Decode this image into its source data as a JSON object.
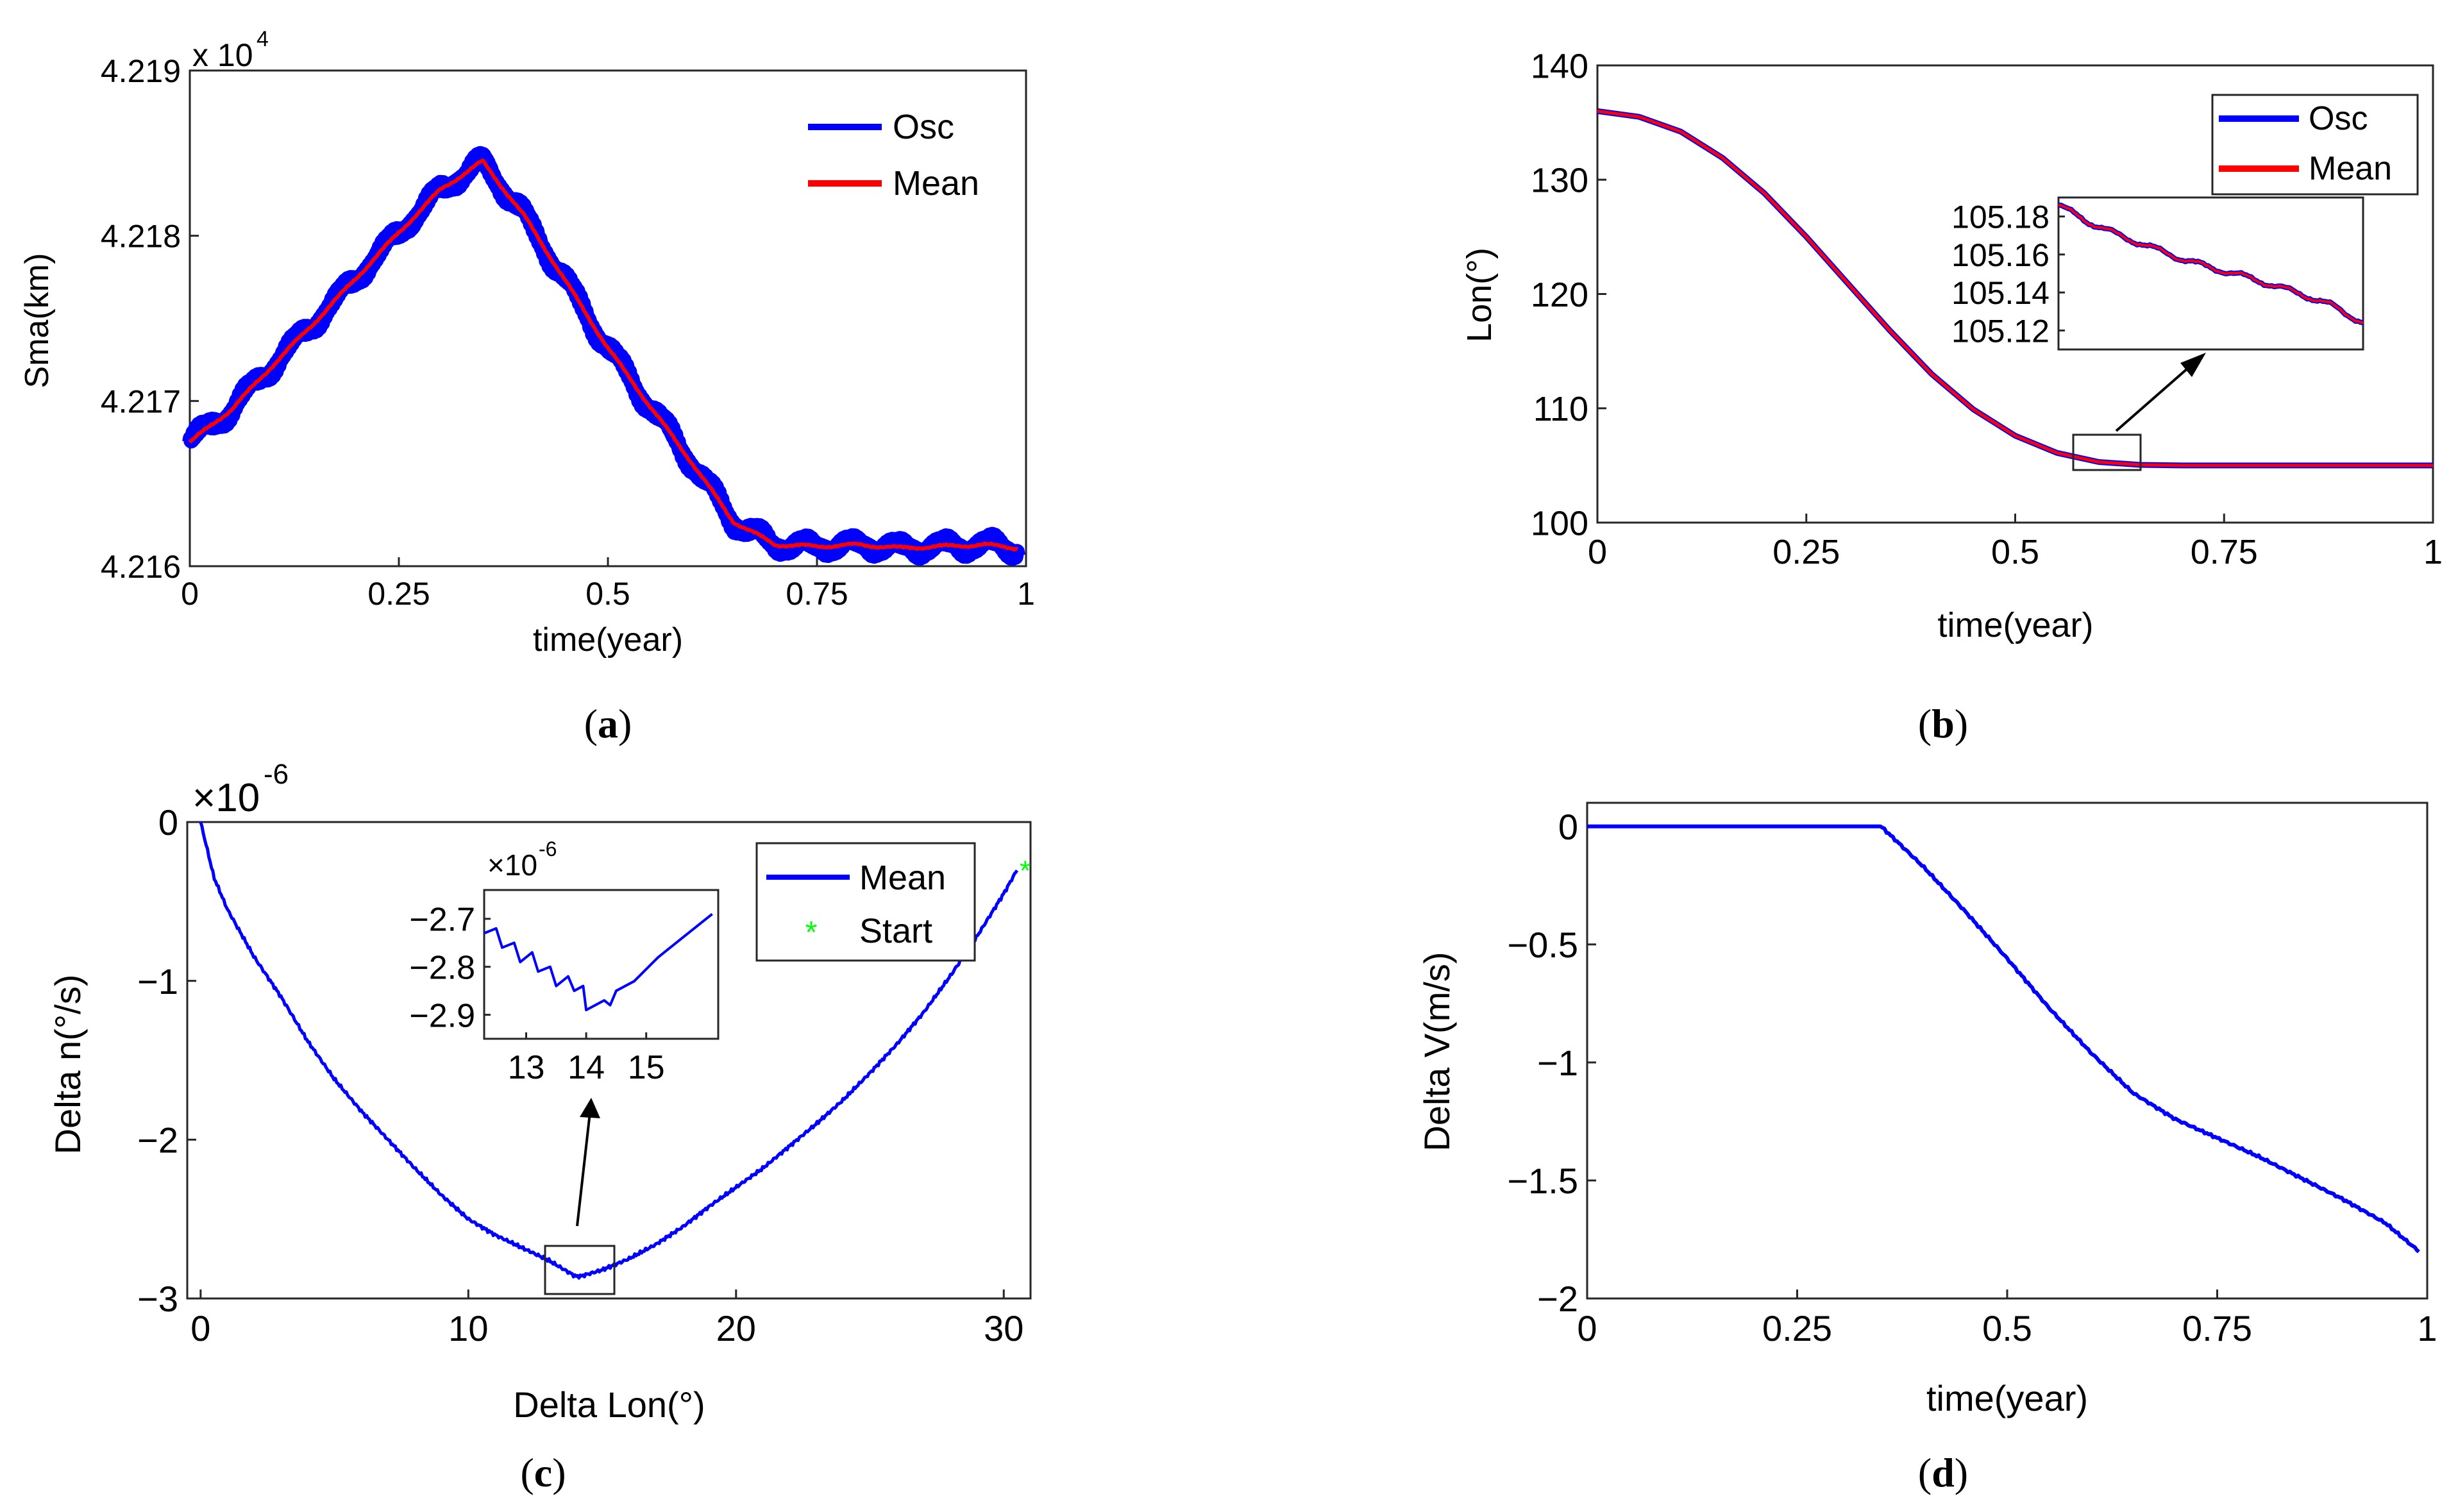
{
  "figure": {
    "panels": [
      {
        "caption_open": "(",
        "caption_letter": "a",
        "caption_close": ")"
      },
      {
        "caption_open": "(",
        "caption_letter": "b",
        "caption_close": ")"
      },
      {
        "caption_open": "(",
        "caption_letter": "c",
        "caption_close": ")"
      },
      {
        "caption_open": "(",
        "caption_letter": "d",
        "caption_close": ")"
      }
    ]
  },
  "colors": {
    "osc": "#0000ff",
    "mean": "#ff0000",
    "mean_blue": "#0000ff",
    "start_marker": "#00ff00",
    "axis": "#262626"
  },
  "chart_data": [
    {
      "id": "a",
      "type": "line",
      "xlabel": "time(year)",
      "ylabel": "Sma(km)",
      "exponent_base": "x 10",
      "exponent_power": "4",
      "xlim": [
        0,
        1
      ],
      "ylim": [
        4.216,
        4.219
      ],
      "xticks": [
        0,
        0.25,
        0.5,
        0.75,
        1
      ],
      "xtick_labels": [
        "0",
        "0.25",
        "0.5",
        "0.75",
        "1"
      ],
      "yticks": [
        4.216,
        4.217,
        4.218,
        4.219
      ],
      "ytick_labels": [
        "4.216",
        "4.217",
        "4.218",
        "4.219"
      ],
      "legend": [
        "Osc",
        "Mean"
      ],
      "legend_position": "top-right",
      "series": [
        {
          "name": "Osc",
          "note": "oscillating band around mean, half-width ~0.00008",
          "x": [
            0,
            0.05,
            0.1,
            0.15,
            0.2,
            0.25,
            0.3,
            0.35,
            0.4,
            0.45,
            0.5,
            0.55,
            0.6,
            0.65,
            0.7,
            0.75,
            0.8,
            0.85,
            0.9,
            0.95,
            0.99
          ],
          "y": [
            4.21675,
            4.21695,
            4.21722,
            4.21748,
            4.21775,
            4.21802,
            4.21828,
            4.21845,
            4.21812,
            4.21772,
            4.21732,
            4.21697,
            4.21663,
            4.21627,
            4.21613,
            4.21612,
            4.21613,
            4.21611,
            4.21612,
            4.21613,
            4.21611
          ]
        },
        {
          "name": "Mean",
          "x": [
            0,
            0.05,
            0.1,
            0.15,
            0.2,
            0.25,
            0.3,
            0.35,
            0.4,
            0.45,
            0.5,
            0.55,
            0.6,
            0.65,
            0.7,
            0.75,
            0.8,
            0.85,
            0.9,
            0.95,
            0.99
          ],
          "y": [
            4.21675,
            4.21695,
            4.21722,
            4.21748,
            4.21775,
            4.21802,
            4.21828,
            4.21845,
            4.21812,
            4.21772,
            4.21732,
            4.21697,
            4.21663,
            4.21627,
            4.21613,
            4.21612,
            4.21613,
            4.21611,
            4.21612,
            4.21613,
            4.21611
          ]
        }
      ]
    },
    {
      "id": "b",
      "type": "line",
      "xlabel": "time(year)",
      "ylabel": "Lon(°)",
      "xlim": [
        0,
        1
      ],
      "ylim": [
        100,
        140
      ],
      "xticks": [
        0,
        0.25,
        0.5,
        0.75,
        1
      ],
      "xtick_labels": [
        "0",
        "0.25",
        "0.5",
        "0.75",
        "1"
      ],
      "yticks": [
        100,
        110,
        120,
        130,
        140
      ],
      "ytick_labels": [
        "100",
        "110",
        "120",
        "130",
        "140"
      ],
      "legend": [
        "Osc",
        "Mean"
      ],
      "legend_position": "top-right",
      "series": [
        {
          "name": "Osc",
          "x": [
            0,
            0.05,
            0.1,
            0.15,
            0.2,
            0.25,
            0.3,
            0.35,
            0.4,
            0.45,
            0.5,
            0.55,
            0.6,
            0.65,
            0.7,
            0.8,
            0.9,
            1.0
          ],
          "y": [
            136,
            135.5,
            134.2,
            131.9,
            128.8,
            125.0,
            120.9,
            116.8,
            113.0,
            109.9,
            107.6,
            106.1,
            105.3,
            105.05,
            105.0,
            105.0,
            105.0,
            105.0
          ]
        },
        {
          "name": "Mean",
          "x": [
            0,
            0.05,
            0.1,
            0.15,
            0.2,
            0.25,
            0.3,
            0.35,
            0.4,
            0.45,
            0.5,
            0.55,
            0.6,
            0.65,
            0.7,
            0.8,
            0.9,
            1.0
          ],
          "y": [
            136,
            135.5,
            134.2,
            131.9,
            128.8,
            125.0,
            120.9,
            116.8,
            113.0,
            109.9,
            107.6,
            106.1,
            105.3,
            105.05,
            105.0,
            105.0,
            105.0,
            105.0
          ]
        }
      ],
      "zoom_box": {
        "x": [
          0.57,
          0.65
        ],
        "y": [
          105,
          108
        ]
      },
      "inset": {
        "xlim": [
          0,
          1
        ],
        "ylim": [
          105.11,
          105.19
        ],
        "yticks": [
          105.12,
          105.14,
          105.16,
          105.18
        ],
        "ytick_labels": [
          "105.12",
          "105.14",
          "105.16",
          "105.18"
        ],
        "series_x": [
          0,
          0.1,
          0.2,
          0.3,
          0.4,
          0.5,
          0.6,
          0.7,
          0.8,
          0.9,
          1.0
        ],
        "series_y": [
          105.186,
          105.177,
          105.17,
          105.164,
          105.158,
          105.153,
          105.149,
          105.144,
          105.139,
          105.133,
          105.124
        ]
      }
    },
    {
      "id": "c",
      "type": "line",
      "xlabel": "Delta Lon(°)",
      "ylabel": "Delta n(°/s)",
      "exponent_base": "×10",
      "exponent_power": "-6",
      "xlim": [
        -0.5,
        31
      ],
      "ylim": [
        -3,
        0
      ],
      "xticks": [
        0,
        10,
        20,
        30
      ],
      "xtick_labels": [
        "0",
        "10",
        "20",
        "30"
      ],
      "yticks": [
        0,
        -1,
        -2,
        -3
      ],
      "ytick_labels": [
        "0",
        "−1",
        "−2",
        "−3"
      ],
      "legend": [
        "Mean",
        "Start"
      ],
      "legend_position": "top-right",
      "series": [
        {
          "name": "Mean",
          "x": [
            0,
            0.5,
            1,
            2,
            3,
            4,
            5,
            6,
            7,
            8,
            9,
            10,
            11,
            12,
            13,
            14,
            14.2,
            15,
            16,
            17,
            18,
            19,
            20,
            21,
            22,
            23,
            24,
            25,
            26,
            27,
            28,
            29,
            30,
            30.5
          ],
          "y": [
            0,
            -0.35,
            -0.55,
            -0.85,
            -1.1,
            -1.38,
            -1.62,
            -1.82,
            -2.0,
            -2.18,
            -2.35,
            -2.5,
            -2.6,
            -2.68,
            -2.76,
            -2.86,
            -2.86,
            -2.82,
            -2.75,
            -2.66,
            -2.55,
            -2.42,
            -2.3,
            -2.18,
            -2.04,
            -1.9,
            -1.75,
            -1.58,
            -1.4,
            -1.2,
            -0.97,
            -0.72,
            -0.45,
            -0.3
          ]
        },
        {
          "name": "Start",
          "x": [
            30.8
          ],
          "y": [
            -0.3
          ]
        }
      ],
      "zoom_box": {
        "x": [
          13.2,
          15.8
        ],
        "y": [
          -2.95,
          -2.72
        ]
      },
      "inset": {
        "exponent_base": "×10",
        "exponent_power": "-6",
        "xlim": [
          12.3,
          16.2
        ],
        "ylim": [
          -2.95,
          -2.64
        ],
        "xticks": [
          13,
          14,
          15
        ],
        "xtick_labels": [
          "13",
          "14",
          "15"
        ],
        "yticks": [
          -2.7,
          -2.8,
          -2.9
        ],
        "ytick_labels": [
          "−2.7",
          "−2.8",
          "−2.9"
        ],
        "series_x": [
          12.3,
          12.5,
          12.6,
          12.8,
          12.9,
          13.1,
          13.2,
          13.4,
          13.5,
          13.7,
          13.8,
          13.95,
          14.0,
          14.3,
          14.4,
          14.5,
          14.8,
          15.2,
          15.6,
          16.1
        ],
        "series_y": [
          -2.73,
          -2.72,
          -2.76,
          -2.75,
          -2.79,
          -2.77,
          -2.81,
          -2.8,
          -2.84,
          -2.82,
          -2.85,
          -2.84,
          -2.89,
          -2.87,
          -2.88,
          -2.85,
          -2.83,
          -2.78,
          -2.74,
          -2.69
        ]
      }
    },
    {
      "id": "d",
      "type": "line",
      "xlabel": "time(year)",
      "ylabel": "Delta V(m/s)",
      "xlim": [
        0,
        1
      ],
      "ylim": [
        -2,
        0.1
      ],
      "xticks": [
        0,
        0.25,
        0.5,
        0.75,
        1
      ],
      "xtick_labels": [
        "0",
        "0.25",
        "0.5",
        "0.75",
        "1"
      ],
      "yticks": [
        0,
        -0.5,
        -1,
        -1.5,
        -2
      ],
      "ytick_labels": [
        "0",
        "−0.5",
        "−1",
        "−1.5",
        "−2"
      ],
      "series": [
        {
          "name": "Delta V",
          "x": [
            0,
            0.1,
            0.2,
            0.3,
            0.35,
            0.4,
            0.45,
            0.5,
            0.55,
            0.6,
            0.65,
            0.7,
            0.75,
            0.8,
            0.85,
            0.9,
            0.95,
            0.99
          ],
          "y": [
            0,
            0,
            0,
            0,
            0,
            -0.17,
            -0.36,
            -0.56,
            -0.77,
            -0.96,
            -1.13,
            -1.24,
            -1.32,
            -1.4,
            -1.49,
            -1.58,
            -1.68,
            -1.8
          ]
        }
      ]
    }
  ]
}
